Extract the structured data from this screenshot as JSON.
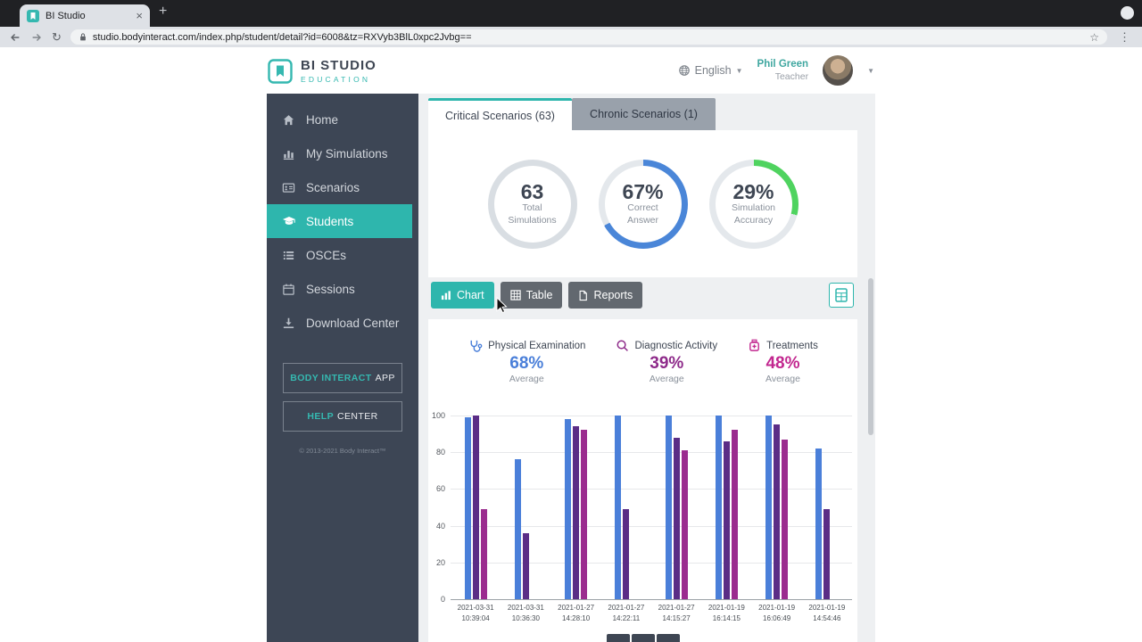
{
  "browser": {
    "tab_title": "BI Studio",
    "url": "studio.bodyinteract.com/index.php/student/detail?id=6008&tz=RXVyb3BlL0xpc2Jvbg=="
  },
  "header": {
    "logo_title": "BI STUDIO",
    "logo_subtitle": "EDUCATION",
    "language": "English",
    "user_name": "Phil Green",
    "user_role": "Teacher"
  },
  "sidebar": {
    "items": [
      {
        "label": "Home"
      },
      {
        "label": "My Simulations"
      },
      {
        "label": "Scenarios"
      },
      {
        "label": "Students",
        "active": true
      },
      {
        "label": "OSCEs"
      },
      {
        "label": "Sessions"
      },
      {
        "label": "Download Center"
      }
    ],
    "app_button_strong": "BODY INTERACT",
    "app_button_rest": "APP",
    "help_button_strong": "HELP",
    "help_button_rest": "CENTER",
    "copyright": "© 2013-2021 Body Interact™"
  },
  "tabs": [
    {
      "label": "Critical Scenarios (63)",
      "active": true
    },
    {
      "label": "Chronic Scenarios (1)",
      "active": false
    }
  ],
  "summary": {
    "donuts": [
      {
        "value": "63",
        "label1": "Total",
        "label2": "Simulations",
        "percent": 100,
        "ring_color": "#d9dee3"
      },
      {
        "value": "67%",
        "label1": "Correct",
        "label2": "Answer",
        "percent": 67,
        "ring_color": "#4a86d8"
      },
      {
        "value": "29%",
        "label1": "Simulation",
        "label2": "Accuracy",
        "percent": 29,
        "ring_color": "#4fd35f"
      }
    ]
  },
  "view_buttons": [
    {
      "label": "Chart",
      "active": true
    },
    {
      "label": "Table",
      "active": false
    },
    {
      "label": "Reports",
      "active": false
    }
  ],
  "stats": [
    {
      "label": "Physical Examination",
      "value": "68%",
      "sub": "Average",
      "color": "#4a7fd9",
      "icon": "stethoscope-icon"
    },
    {
      "label": "Diagnostic Activity",
      "value": "39%",
      "sub": "Average",
      "color": "#8e2b8a",
      "icon": "diagnostic-icon"
    },
    {
      "label": "Treatments",
      "value": "48%",
      "sub": "Average",
      "color": "#c2278f",
      "icon": "treatments-icon"
    }
  ],
  "chart_data": {
    "type": "bar",
    "title": "",
    "xlabel": "",
    "ylabel": "",
    "ylim": [
      0,
      100
    ],
    "yticks": [
      0,
      20,
      40,
      60,
      80,
      100
    ],
    "grid": true,
    "legend_position": "none",
    "categories": [
      {
        "date": "2021-03-31",
        "time": "10:39:04"
      },
      {
        "date": "2021-03-31",
        "time": "10:36:30"
      },
      {
        "date": "2021-01-27",
        "time": "14:28:10"
      },
      {
        "date": "2021-01-27",
        "time": "14:22:11"
      },
      {
        "date": "2021-01-27",
        "time": "14:15:27"
      },
      {
        "date": "2021-01-19",
        "time": "16:14:15"
      },
      {
        "date": "2021-01-19",
        "time": "16:06:49"
      },
      {
        "date": "2021-01-19",
        "time": "14:54:46"
      }
    ],
    "series": [
      {
        "name": "Physical Examination",
        "color": "#4a7fd9",
        "values": [
          99,
          76,
          98,
          100,
          100,
          100,
          100,
          82
        ]
      },
      {
        "name": "Diagnostic Activity",
        "color": "#5b2d86",
        "values": [
          100,
          36,
          94,
          49,
          88,
          86,
          95,
          49
        ]
      },
      {
        "name": "Treatments",
        "color": "#9b2c8f",
        "values": [
          49,
          0,
          92,
          0,
          81,
          92,
          87,
          0
        ]
      }
    ]
  }
}
